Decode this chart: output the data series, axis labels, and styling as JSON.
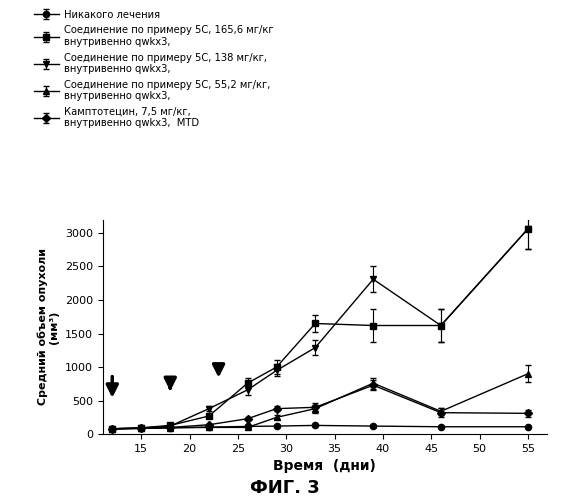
{
  "title": "ФИГ. 3",
  "xlabel": "Время  (дни)",
  "ylabel": "Средний объем опухоли\n(мм³)",
  "xlim": [
    11,
    57
  ],
  "ylim": [
    0,
    3200
  ],
  "yticks": [
    0,
    500,
    1000,
    1500,
    2000,
    2500,
    3000
  ],
  "xticks": [
    15,
    20,
    25,
    30,
    35,
    40,
    45,
    50,
    55
  ],
  "arrows": [
    {
      "x": 12,
      "y_top": 900,
      "y_bot": 500
    },
    {
      "x": 18,
      "y_top": 750,
      "y_bot": 600
    },
    {
      "x": 23,
      "y_top": 1000,
      "y_bot": 800
    }
  ],
  "series": [
    {
      "label": "Никакого лечения",
      "marker": "o",
      "x": [
        12,
        15,
        18,
        22,
        26,
        29,
        33,
        39,
        46,
        55
      ],
      "y": [
        75,
        85,
        95,
        105,
        115,
        120,
        130,
        120,
        110,
        110
      ],
      "yerr": [
        8,
        8,
        8,
        8,
        10,
        10,
        12,
        12,
        12,
        15
      ]
    },
    {
      "label": "Соединение по примеру 5С, 165,6 мг/кг\nвнутривенно qwkx3,",
      "marker": "s",
      "x": [
        12,
        15,
        18,
        22,
        26,
        29,
        33,
        39,
        46,
        55
      ],
      "y": [
        80,
        95,
        130,
        270,
        760,
        1000,
        1650,
        1620,
        1620,
        3060
      ],
      "yerr": [
        8,
        10,
        15,
        30,
        70,
        110,
        130,
        250,
        250,
        300
      ]
    },
    {
      "label": "Соединение по примеру 5С, 138 мг/кг,\nвнутривенно qwkx3,",
      "marker": "v",
      "x": [
        12,
        15,
        18,
        22,
        26,
        29,
        33,
        39,
        46,
        55
      ],
      "y": [
        80,
        90,
        120,
        380,
        660,
        950,
        1290,
        2310,
        1620,
        3060
      ],
      "yerr": [
        8,
        10,
        15,
        40,
        70,
        90,
        110,
        190,
        250,
        300
      ]
    },
    {
      "label": "Соединение по примеру 5С, 55,2 мг/кг,\nвнутривенно qwkx3,",
      "marker": "^",
      "x": [
        12,
        15,
        18,
        22,
        26,
        29,
        33,
        39,
        46,
        55
      ],
      "y": [
        80,
        85,
        95,
        100,
        100,
        250,
        380,
        760,
        340,
        900
      ],
      "yerr": [
        8,
        8,
        10,
        10,
        15,
        30,
        60,
        80,
        50,
        130
      ]
    },
    {
      "label": "Камптотецин, 7,5 мг/кг,\nвнутривенно qwkx3,  MTD",
      "marker": "D",
      "x": [
        12,
        15,
        18,
        22,
        26,
        29,
        33,
        39,
        46,
        55
      ],
      "y": [
        80,
        90,
        100,
        140,
        230,
        380,
        400,
        730,
        320,
        310
      ],
      "yerr": [
        8,
        10,
        12,
        15,
        25,
        40,
        70,
        70,
        70,
        50
      ]
    }
  ],
  "legend_entries": [
    "Никакого лечения",
    "Соединение по примеру 5С, 165,6 мг/кг\nвнутривенно qwkx3,",
    "Соединение по примеру 5С, 138 мг/кг,\nвнутривенно qwkx3,",
    "Соединение по примеру 5С, 55,2 мг/кг,\nвнутривенно qwkx3,",
    "Камптотецин, 7,5 мг/кг,\nвнутривенно qwkx3,  MTD"
  ],
  "fontsize": 8,
  "legend_fontsize": 7.2,
  "title_fontsize": 13
}
